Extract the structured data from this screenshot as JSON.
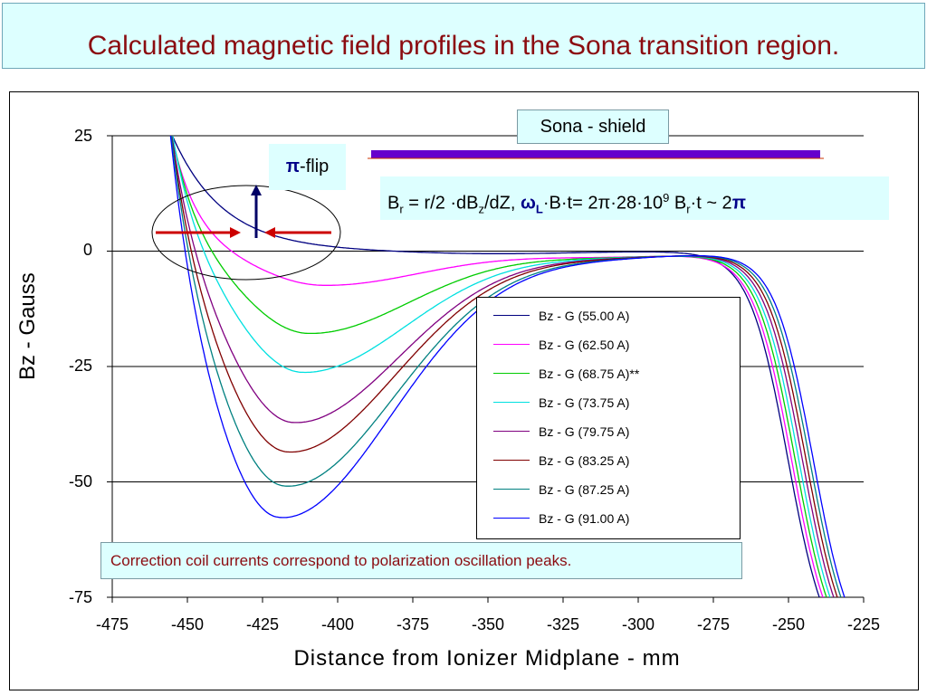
{
  "slide": {
    "title": "Calculated magnetic field profiles in the Sona transition region."
  },
  "annotations": {
    "sona_shield": "Sona - shield",
    "flip_symbol": "π",
    "flip_text": "-flip",
    "formula": {
      "part1": "B",
      "part1_sub": "r",
      "part2": " = r/2 ·dB",
      "part2_sub": "z",
      "part3": "/dZ,  ",
      "omega": "ω",
      "omega_sub": "L",
      "part4": "·B·t= 2π·28·10",
      "part4_sup": "9",
      "part5": " B",
      "part5_sub": "r",
      "part6": "·t ~ 2",
      "pi": "π"
    },
    "note": "Correction coil currents correspond to polarization oscillation peaks."
  },
  "colors": {
    "title": "#8b0b10",
    "box_fill": "#ddffff",
    "shield_bar": "#6600cc",
    "arrow_red": "#cc0000",
    "arrow_blue": "#000066"
  },
  "chart_data": {
    "type": "line",
    "title": "",
    "xlabel": "Distance from Ionizer Midplane - mm",
    "ylabel": "Bz - Gauss",
    "xlim": [
      -475,
      -225
    ],
    "ylim": [
      -75,
      25
    ],
    "xticks": [
      "-475",
      "-450",
      "-425",
      "-400",
      "-375",
      "-350",
      "-325",
      "-300",
      "-275",
      "-250",
      "-225"
    ],
    "yticks": [
      "25",
      "0",
      "-25",
      "-50",
      "-75"
    ],
    "grid": "horizontal",
    "legend_position": "center-right",
    "series": [
      {
        "name": "Bz - G (55.00 A)",
        "color": "#000080",
        "min": -0.5,
        "min_x": -350
      },
      {
        "name": "Bz - G (62.50 A)",
        "color": "#ff00ff",
        "min": -7.5,
        "min_x": -405
      },
      {
        "name": "Bz - G (68.75 A)**",
        "color": "#00cc00",
        "min": -18,
        "min_x": -410
      },
      {
        "name": "Bz - G (73.75 A)",
        "color": "#00e0e0",
        "min": -26.5,
        "min_x": -412
      },
      {
        "name": "Bz - G (79.75 A)",
        "color": "#800080",
        "min": -37.5,
        "min_x": -415
      },
      {
        "name": "Bz - G (83.25 A)",
        "color": "#800000",
        "min": -44,
        "min_x": -417
      },
      {
        "name": "Bz - G (87.25 A)",
        "color": "#008080",
        "min": -51.5,
        "min_x": -418
      },
      {
        "name": "Bz - G (91.00 A)",
        "color": "#0000ff",
        "min": -58.5,
        "min_x": -420
      }
    ],
    "shield_region_x": [
      -390,
      -240
    ]
  }
}
